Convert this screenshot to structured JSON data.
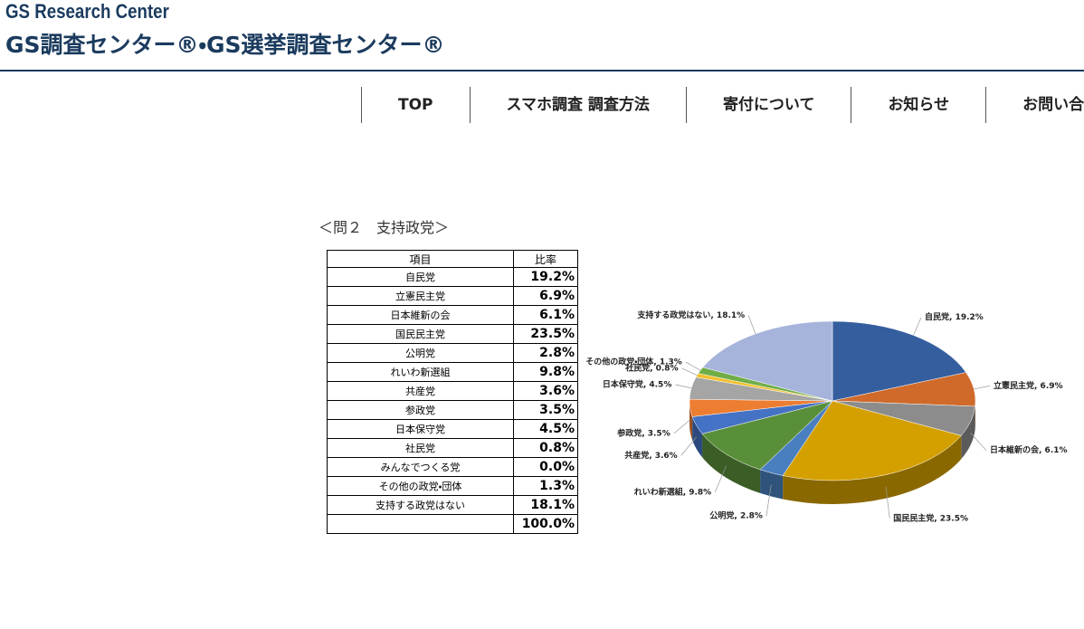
{
  "header": {
    "subtitle": "GS Research Center",
    "title": "GS調査センター®・GS選挙調査センター®"
  },
  "nav": [
    "TOP",
    "スマホ調査 調査方法",
    "寄付について",
    "お知らせ",
    "お問い合わせ"
  ],
  "section_title": "＜問２　支持政党＞",
  "table": {
    "header": [
      "項目",
      "比率"
    ],
    "rows": [
      [
        "自民党",
        "19.2%"
      ],
      [
        "立憲民主党",
        "6.9%"
      ],
      [
        "日本維新の会",
        "6.1%"
      ],
      [
        "国民民主党",
        "23.5%"
      ],
      [
        "公明党",
        "2.8%"
      ],
      [
        "れいわ新選組",
        "9.8%"
      ],
      [
        "共産党",
        "3.6%"
      ],
      [
        "参政党",
        "3.5%"
      ],
      [
        "日本保守党",
        "4.5%"
      ],
      [
        "社民党",
        "0.8%"
      ],
      [
        "みんなでつくる党",
        "0.0%"
      ],
      [
        "その他の政党・団体",
        "1.3%"
      ],
      [
        "支持する政党はない",
        "18.1%"
      ]
    ],
    "total": "100.0%"
  },
  "chart_data": {
    "type": "pie",
    "categories": [
      "自民党",
      "立憲民主党",
      "日本維新の会",
      "国民民主党",
      "公明党",
      "れいわ新選組",
      "共産党",
      "参政党",
      "日本保守党",
      "社民党",
      "その他の政党・団体",
      "支持する政党はない"
    ],
    "values": [
      19.2,
      6.9,
      6.1,
      23.5,
      2.8,
      9.8,
      3.6,
      3.5,
      4.5,
      0.8,
      1.3,
      18.1
    ],
    "value_labels": [
      "自民党, 19.2%",
      "立憲民主党, 6.9%",
      "日本維新の会, 6.1%",
      "国民民主党, 23.5%",
      "公明党, 2.8%",
      "れいわ新選組, 9.8%",
      "共産党, 3.6%",
      "参政党, 3.5%",
      "日本保守党, 4.5%",
      "社民党, 0.8%",
      "その他の政党・団体, 1.3%",
      "支持する政党はない, 18.1%"
    ],
    "colors": [
      "#355e9f",
      "#cf6a2b",
      "#8c8c8c",
      "#d4a000",
      "#4a7fbf",
      "#5a8f3a",
      "#4472c4",
      "#ed7d31",
      "#a5a5a5",
      "#f2c12e",
      "#70ad47",
      "#a6b4dc"
    ]
  }
}
